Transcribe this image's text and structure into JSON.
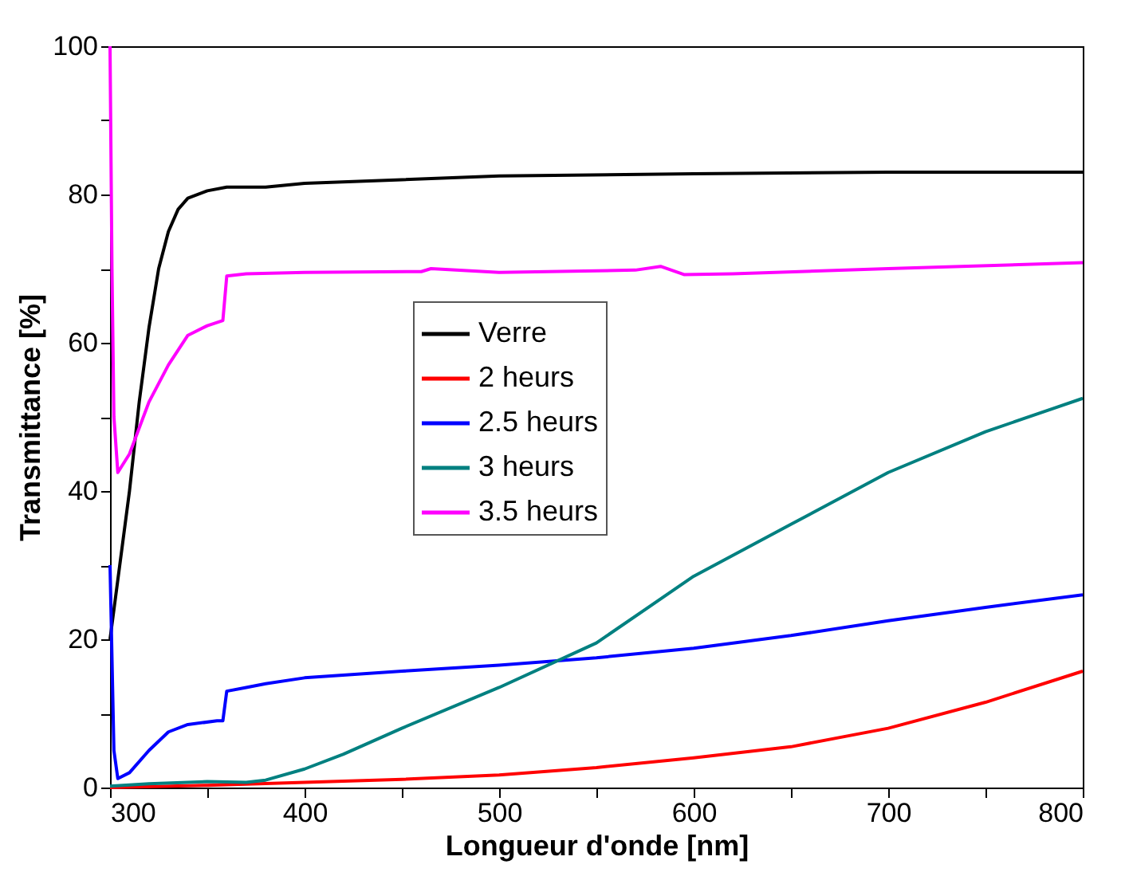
{
  "chart_data": {
    "type": "line",
    "xlabel": "Longueur d'onde [nm]",
    "ylabel": "Transmittance [%]",
    "xlim": [
      300,
      800
    ],
    "ylim": [
      0,
      100
    ],
    "xticks": [
      300,
      {
        "value": 350,
        "label": null
      },
      400,
      {
        "value": 450,
        "label": null
      },
      500,
      {
        "value": 550,
        "label": null
      },
      600,
      {
        "value": 650,
        "label": null
      },
      700,
      {
        "value": 750,
        "label": null
      },
      800
    ],
    "yticks": [
      0,
      {
        "value": 10,
        "label": null
      },
      20,
      {
        "value": 30,
        "label": null
      },
      40,
      {
        "value": 50,
        "label": null
      },
      60,
      {
        "value": 70,
        "label": null
      },
      80,
      {
        "value": 90,
        "label": null
      },
      100
    ],
    "grid": false,
    "legend": "center",
    "marker": "none",
    "line_style": "solid",
    "series": [
      {
        "name": "Verre",
        "color": "#000000",
        "x": [
          300,
          305,
          310,
          315,
          320,
          325,
          330,
          335,
          340,
          350,
          360,
          370,
          380,
          400,
          450,
          500,
          600,
          700,
          800
        ],
        "values": [
          20,
          30,
          40,
          52,
          62,
          70,
          75,
          78,
          79.5,
          80.5,
          81,
          81,
          81,
          81.5,
          82,
          82.5,
          82.8,
          83,
          83
        ]
      },
      {
        "name": "2 heurs",
        "color": "#ff0000",
        "x": [
          300,
          350,
          400,
          450,
          500,
          550,
          600,
          650,
          700,
          750,
          800
        ],
        "values": [
          0,
          0.3,
          0.7,
          1.1,
          1.7,
          2.7,
          4,
          5.5,
          8,
          11.5,
          15.7
        ]
      },
      {
        "name": "2.5 heurs",
        "color": "#0000ff",
        "x": [
          300,
          302,
          304,
          310,
          320,
          330,
          340,
          355,
          358,
          360,
          370,
          380,
          400,
          450,
          500,
          550,
          600,
          650,
          700,
          750,
          800
        ],
        "values": [
          30,
          5,
          1.2,
          2,
          5,
          7.5,
          8.5,
          9,
          9,
          13,
          13.5,
          14,
          14.8,
          15.7,
          16.5,
          17.5,
          18.8,
          20.5,
          22.5,
          24.3,
          26
        ]
      },
      {
        "name": "3 heurs",
        "color": "#008080",
        "x": [
          300,
          320,
          350,
          370,
          380,
          400,
          420,
          450,
          500,
          550,
          600,
          650,
          700,
          750,
          800
        ],
        "values": [
          0.2,
          0.5,
          0.8,
          0.7,
          1,
          2.5,
          4.5,
          8,
          13.5,
          19.5,
          28.5,
          35.5,
          42.5,
          48,
          52.5
        ]
      },
      {
        "name": "3.5 heurs",
        "color": "#ff00ff",
        "x": [
          300,
          301,
          302,
          304,
          310,
          320,
          330,
          340,
          350,
          358,
          360,
          370,
          400,
          460,
          465,
          500,
          570,
          583,
          595,
          620,
          700,
          800
        ],
        "values": [
          100,
          70,
          50,
          42.5,
          45,
          52,
          57,
          61,
          62.3,
          63,
          69,
          69.3,
          69.5,
          69.6,
          70,
          69.5,
          69.8,
          70.3,
          69.2,
          69.3,
          70,
          70.8
        ]
      }
    ]
  }
}
